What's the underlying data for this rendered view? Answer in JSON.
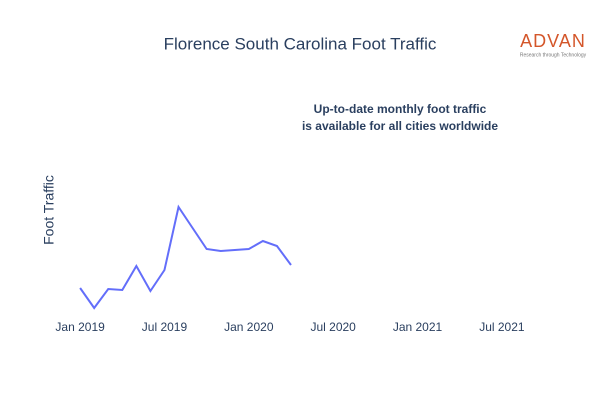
{
  "chart_data": {
    "type": "line",
    "title": "Florence South Carolina Foot Traffic",
    "logo": "ADVAN",
    "logo_tagline": "Research through Technology",
    "annotation": [
      "Up-to-date monthly foot traffic",
      "is available for all cities worldwide"
    ],
    "y_label": "Foot Traffic",
    "x": [
      "2019-01",
      "2019-02",
      "2019-03",
      "2019-04",
      "2019-05",
      "2019-06",
      "2019-07",
      "2019-08",
      "2019-09",
      "2019-10",
      "2019-11",
      "2019-12",
      "2020-01",
      "2020-02",
      "2020-03",
      "2020-04"
    ],
    "series": [
      {
        "color": "#636efa",
        "values": [
          32,
          12,
          31,
          30,
          54,
          29,
          50,
          113,
          92,
          71,
          69,
          70,
          71,
          79,
          74,
          55
        ]
      }
    ],
    "xlim": [
      "2018-11",
      "2021-09"
    ],
    "xticks": [
      {
        "value": "2019-01",
        "label": "Jan 2019"
      },
      {
        "value": "2019-07",
        "label": "Jul 2019"
      },
      {
        "value": "2020-01",
        "label": "Jan 2020"
      },
      {
        "value": "2020-07",
        "label": "Jul 2020"
      },
      {
        "value": "2021-01",
        "label": "Jan 2021"
      },
      {
        "value": "2021-07",
        "label": "Jul 2021"
      }
    ],
    "ylim": [
      0,
      230
    ]
  }
}
